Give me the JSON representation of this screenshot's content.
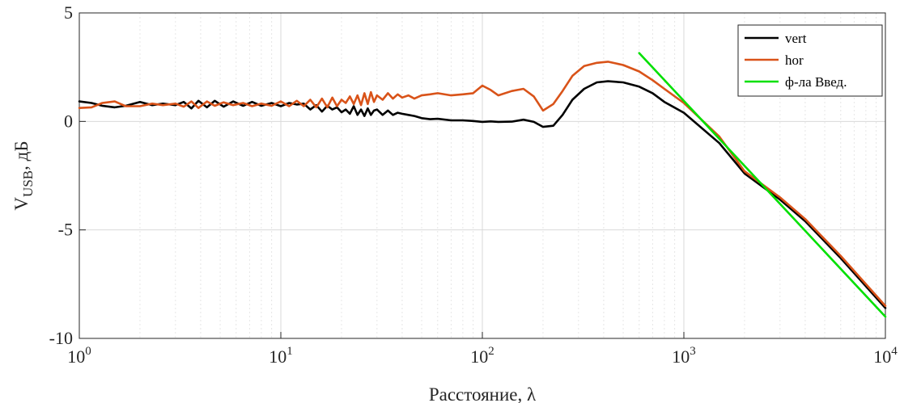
{
  "chart_data": {
    "type": "line",
    "xlabel": "Расстояние, λ",
    "ylabel_main": "V",
    "ylabel_sub": "USB",
    "ylabel_tail": ", дБ",
    "x_scale": "log",
    "xlim": [
      1,
      10000
    ],
    "ylim": [
      -10,
      5
    ],
    "x_ticks": [
      {
        "base": "10",
        "exp": "0"
      },
      {
        "base": "10",
        "exp": "1"
      },
      {
        "base": "10",
        "exp": "2"
      },
      {
        "base": "10",
        "exp": "3"
      },
      {
        "base": "10",
        "exp": "4"
      }
    ],
    "y_ticks": [
      "5",
      "0",
      "-5",
      "-10"
    ],
    "grid": true,
    "legend_position": "top-right",
    "series": [
      {
        "name": "vert",
        "color": "#000000",
        "x": [
          1,
          1.15,
          1.3,
          1.5,
          1.7,
          2.0,
          2.3,
          2.6,
          3.0,
          3.3,
          3.6,
          3.9,
          4.3,
          4.7,
          5.2,
          5.8,
          6.5,
          7.2,
          8.0,
          9.0,
          10,
          11,
          12,
          13,
          14,
          15,
          16,
          17,
          18,
          19,
          20,
          21,
          22,
          23,
          24,
          25,
          26,
          27,
          28,
          29,
          30,
          32,
          34,
          36,
          38,
          40,
          43,
          46,
          50,
          55,
          60,
          70,
          80,
          90,
          100,
          110,
          120,
          140,
          160,
          180,
          200,
          225,
          250,
          280,
          320,
          370,
          420,
          500,
          600,
          700,
          800,
          1000,
          1500,
          2000,
          3000,
          4000,
          6000,
          10000
        ],
        "y": [
          0.92,
          0.85,
          0.72,
          0.65,
          0.72,
          0.9,
          0.75,
          0.82,
          0.75,
          0.9,
          0.6,
          0.95,
          0.65,
          0.95,
          0.68,
          0.92,
          0.72,
          0.9,
          0.72,
          0.85,
          0.7,
          0.85,
          0.78,
          0.82,
          0.55,
          0.75,
          0.45,
          0.72,
          0.55,
          0.65,
          0.42,
          0.55,
          0.35,
          0.7,
          0.3,
          0.55,
          0.25,
          0.6,
          0.3,
          0.5,
          0.55,
          0.3,
          0.5,
          0.3,
          0.4,
          0.35,
          0.3,
          0.25,
          0.15,
          0.1,
          0.12,
          0.05,
          0.05,
          0.02,
          -0.02,
          0.0,
          -0.02,
          -0.01,
          0.08,
          -0.02,
          -0.25,
          -0.2,
          0.3,
          1.0,
          1.5,
          1.8,
          1.85,
          1.8,
          1.6,
          1.3,
          0.9,
          0.4,
          -1.0,
          -2.4,
          -3.6,
          -4.6,
          -6.3,
          -8.6
        ]
      },
      {
        "name": "hor",
        "color": "#D95319",
        "x": [
          1,
          1.15,
          1.3,
          1.5,
          1.7,
          2.0,
          2.3,
          2.6,
          3.0,
          3.3,
          3.6,
          3.9,
          4.3,
          4.7,
          5.2,
          5.8,
          6.5,
          7.2,
          8.0,
          9.0,
          10,
          11,
          12,
          13,
          14,
          15,
          16,
          17,
          18,
          19,
          20,
          21,
          22,
          23,
          24,
          25,
          26,
          27,
          28,
          29,
          30,
          32,
          34,
          36,
          38,
          40,
          43,
          46,
          50,
          55,
          60,
          70,
          80,
          90,
          100,
          110,
          120,
          140,
          160,
          180,
          200,
          225,
          250,
          280,
          320,
          370,
          420,
          500,
          600,
          700,
          800,
          1000,
          1500,
          2000,
          3000,
          4000,
          6000,
          10000
        ],
        "y": [
          0.62,
          0.65,
          0.85,
          0.92,
          0.7,
          0.7,
          0.82,
          0.75,
          0.82,
          0.68,
          0.92,
          0.62,
          0.92,
          0.72,
          0.88,
          0.75,
          0.85,
          0.7,
          0.82,
          0.72,
          0.92,
          0.7,
          0.95,
          0.7,
          1.0,
          0.65,
          1.05,
          0.65,
          1.1,
          0.7,
          1.0,
          0.85,
          1.15,
          0.8,
          1.2,
          0.75,
          1.3,
          0.8,
          1.35,
          0.9,
          1.2,
          1.0,
          1.3,
          1.05,
          1.25,
          1.1,
          1.2,
          1.05,
          1.2,
          1.25,
          1.3,
          1.2,
          1.25,
          1.3,
          1.65,
          1.45,
          1.2,
          1.4,
          1.5,
          1.15,
          0.5,
          0.8,
          1.4,
          2.1,
          2.55,
          2.7,
          2.75,
          2.6,
          2.3,
          1.9,
          1.5,
          0.85,
          -0.7,
          -2.3,
          -3.5,
          -4.5,
          -6.2,
          -8.5
        ]
      },
      {
        "name": "ф-ла Введ.",
        "color": "#00E000",
        "x": [
          600,
          10000
        ],
        "y": [
          3.15,
          -9.0
        ]
      }
    ]
  }
}
